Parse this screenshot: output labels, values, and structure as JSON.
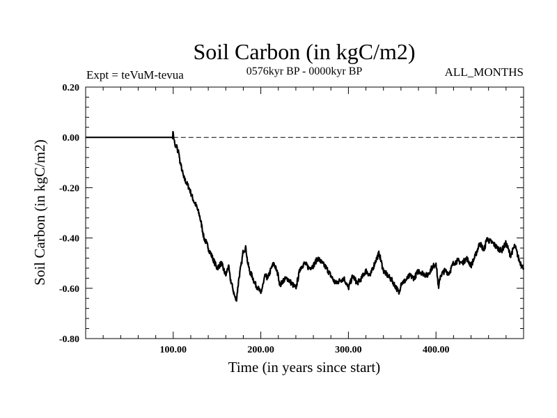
{
  "chart_data": {
    "type": "line",
    "title": "Soil Carbon (in kgC/m2)",
    "subtitle": "0576kyr BP - 0000kyr BP",
    "left_label": "Expt = teVuM-tevua",
    "right_label": "ALL_MONTHS",
    "xlabel": "Time (in years since start)",
    "ylabel": "Soil Carbon (in kgC/m2)",
    "xlim": [
      0,
      500
    ],
    "ylim": [
      -0.8,
      0.2
    ],
    "x_ticks": [
      100,
      200,
      300,
      400
    ],
    "x_tick_labels": [
      "100.00",
      "200.00",
      "300.00",
      "400.00"
    ],
    "y_ticks": [
      0.2,
      0.0,
      -0.2,
      -0.4,
      -0.6,
      -0.8
    ],
    "y_tick_labels": [
      "0.20",
      "0.00",
      "-0.20",
      "-0.40",
      "-0.60",
      "-0.80"
    ],
    "reference_line": {
      "y": 0.0,
      "style": "dashed"
    },
    "series": [
      {
        "name": "Soil Carbon",
        "x": [
          0,
          50,
          99,
          100,
          101,
          102,
          103,
          104,
          105,
          106,
          107,
          108,
          110,
          112,
          115,
          118,
          120,
          123,
          126,
          130,
          133,
          135,
          138,
          140,
          145,
          150,
          155,
          160,
          163,
          165,
          168,
          170,
          172,
          175,
          178,
          180,
          183,
          185,
          188,
          190,
          193,
          197,
          200,
          203,
          205,
          208,
          212,
          215,
          218,
          220,
          222,
          225,
          230,
          235,
          240,
          245,
          250,
          255,
          260,
          265,
          270,
          275,
          280,
          285,
          290,
          295,
          300,
          305,
          310,
          315,
          320,
          325,
          330,
          335,
          340,
          345,
          350,
          355,
          358,
          360,
          365,
          370,
          375,
          380,
          385,
          390,
          395,
          400,
          403,
          405,
          410,
          415,
          420,
          425,
          430,
          435,
          440,
          445,
          450,
          455,
          458,
          460,
          465,
          470,
          475,
          480,
          485,
          490,
          495,
          500
        ],
        "values": [
          0.0,
          0.0,
          0.0,
          0.02,
          -0.01,
          -0.03,
          -0.04,
          -0.03,
          -0.06,
          -0.05,
          -0.08,
          -0.1,
          -0.13,
          -0.16,
          -0.18,
          -0.2,
          -0.22,
          -0.25,
          -0.27,
          -0.31,
          -0.36,
          -0.4,
          -0.42,
          -0.44,
          -0.48,
          -0.52,
          -0.5,
          -0.55,
          -0.51,
          -0.56,
          -0.6,
          -0.63,
          -0.65,
          -0.56,
          -0.5,
          -0.45,
          -0.44,
          -0.5,
          -0.54,
          -0.55,
          -0.58,
          -0.6,
          -0.62,
          -0.58,
          -0.55,
          -0.56,
          -0.52,
          -0.5,
          -0.53,
          -0.55,
          -0.59,
          -0.57,
          -0.56,
          -0.58,
          -0.6,
          -0.52,
          -0.5,
          -0.52,
          -0.51,
          -0.48,
          -0.5,
          -0.52,
          -0.55,
          -0.58,
          -0.57,
          -0.56,
          -0.6,
          -0.55,
          -0.58,
          -0.56,
          -0.53,
          -0.55,
          -0.5,
          -0.46,
          -0.53,
          -0.55,
          -0.57,
          -0.6,
          -0.62,
          -0.58,
          -0.57,
          -0.55,
          -0.56,
          -0.53,
          -0.54,
          -0.55,
          -0.52,
          -0.5,
          -0.6,
          -0.55,
          -0.53,
          -0.54,
          -0.5,
          -0.49,
          -0.5,
          -0.48,
          -0.51,
          -0.47,
          -0.42,
          -0.45,
          -0.4,
          -0.41,
          -0.42,
          -0.44,
          -0.45,
          -0.42,
          -0.47,
          -0.43,
          -0.49,
          -0.52
        ]
      }
    ]
  }
}
